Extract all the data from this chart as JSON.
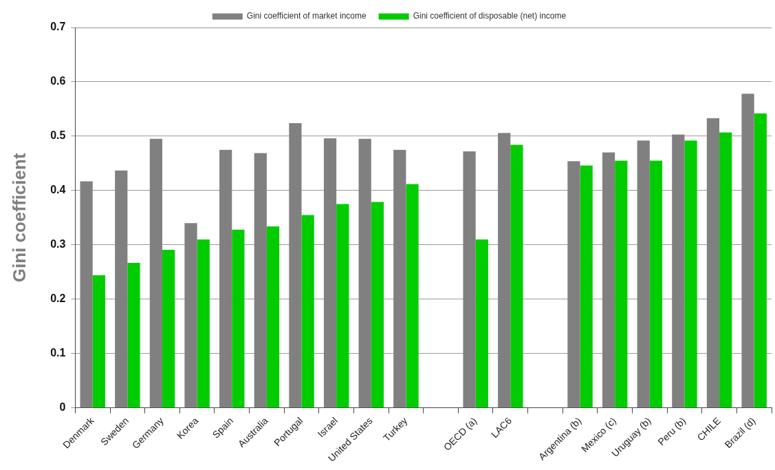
{
  "chart_data": {
    "type": "bar",
    "ylabel": "Gini coefficient",
    "categories": [
      "Denmark",
      "Sweden",
      "Germany",
      "Korea",
      "Spain",
      "Australia",
      "Portugal",
      "Israel",
      "United States",
      "Turkey",
      null,
      "OECD (a)",
      "LAC6",
      null,
      "Argentina (b)",
      "Mexico (c)",
      "Uruguay (b)",
      "Peru (b)",
      "CHILE",
      "Brazil (d)"
    ],
    "series": [
      {
        "name": "Gini coefficient of market income",
        "color": "#808080",
        "values": [
          0.417,
          0.437,
          0.495,
          0.34,
          0.475,
          0.469,
          0.524,
          0.496,
          0.495,
          0.475,
          null,
          0.472,
          0.506,
          null,
          0.454,
          0.47,
          0.492,
          0.503,
          0.533,
          0.578
        ]
      },
      {
        "name": "Gini coefficient of disposable (net) income",
        "color": "#00cc00",
        "values": [
          0.244,
          0.267,
          0.291,
          0.31,
          0.328,
          0.334,
          0.355,
          0.375,
          0.379,
          0.412,
          null,
          0.31,
          0.484,
          null,
          0.446,
          0.455,
          0.455,
          0.492,
          0.507,
          0.542
        ]
      }
    ],
    "ylim": [
      0,
      0.7
    ],
    "yticks": [
      0,
      0.1,
      0.2,
      0.3,
      0.4,
      0.5,
      0.6,
      0.7
    ],
    "grid": "y",
    "legend": "top"
  }
}
